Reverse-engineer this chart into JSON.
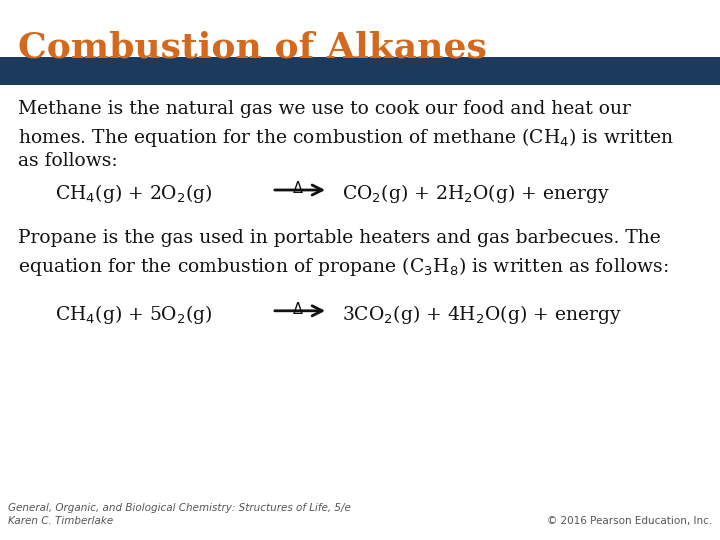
{
  "title": "Combustion of Alkanes",
  "title_color": "#D2691E",
  "title_font_size": 26,
  "header_bar_color": "#1C3A5E",
  "bg_color": "#FFFFFF",
  "body_font_size": 13.5,
  "body_color": "#111111",
  "footer_left": "General, Organic, and Biological Chemistry: Structures of Life, 5/e\nKaren C. Timberlake",
  "footer_right": "© 2016 Pearson Education, Inc.",
  "footer_font_size": 7.5
}
